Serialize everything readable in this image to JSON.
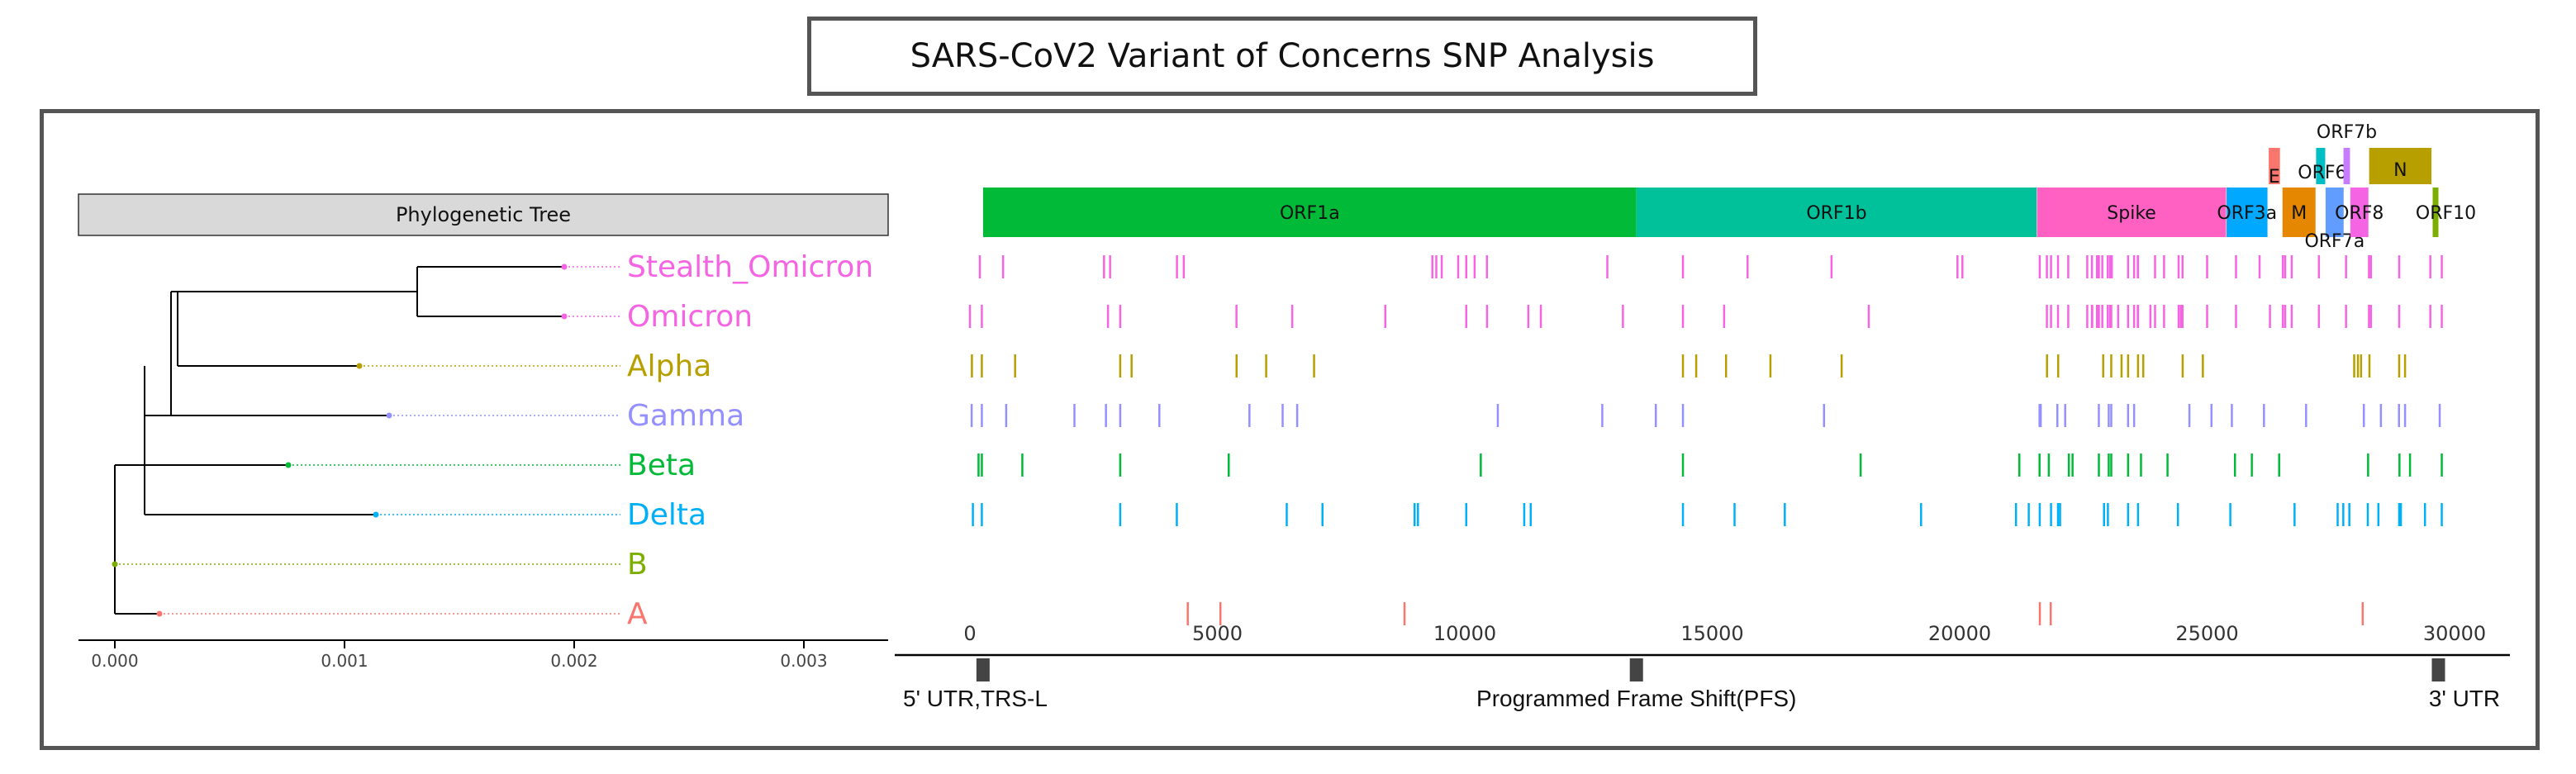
{
  "title": "SARS-CoV2 Variant of Concerns SNP Analysis",
  "tree": {
    "header": "Phylogenetic Tree",
    "axis_ticks": [
      "0.000",
      "0.001",
      "0.002",
      "0.003"
    ],
    "axis_values": [
      0.0,
      0.001,
      0.002,
      0.003
    ],
    "tips": [
      {
        "label": "Stealth_Omicron",
        "color": "#F564E3",
        "dist": 0.00194
      },
      {
        "label": "Omicron",
        "color": "#F564E3",
        "dist": 0.00194
      },
      {
        "label": "Alpha",
        "color": "#B79F00",
        "dist": 0.00106
      },
      {
        "label": "Gamma",
        "color": "#9590FF",
        "dist": 0.0012
      },
      {
        "label": "Beta",
        "color": "#00BA38",
        "dist": 0.00075
      },
      {
        "label": "Delta",
        "color": "#00B0F6",
        "dist": 0.00113
      },
      {
        "label": "B",
        "color": "#7CAE00",
        "dist": 0.0
      },
      {
        "label": "A",
        "color": "#F8766D",
        "dist": 0.0002
      }
    ]
  },
  "genome": {
    "axis_ticks": [
      "0",
      "5000",
      "10000",
      "15000",
      "20000",
      "25000",
      "30000"
    ],
    "axis_values": [
      0,
      5000,
      10000,
      15000,
      20000,
      25000,
      30000
    ],
    "genes": [
      {
        "name": "ORF1a",
        "start": 266,
        "end": 13468,
        "color": "#00BA38",
        "row": 0
      },
      {
        "name": "ORF1b",
        "start": 13468,
        "end": 21555,
        "color": "#00C19A",
        "row": 0
      },
      {
        "name": "Spike",
        "start": 21563,
        "end": 25384,
        "color": "#FF61C3",
        "row": 0
      },
      {
        "name": "ORF3a",
        "start": 25393,
        "end": 26220,
        "color": "#00A9FF",
        "row": 0
      },
      {
        "name": "E",
        "start": 26245,
        "end": 26472,
        "color": "#F8766D",
        "row": 1
      },
      {
        "name": "M",
        "start": 26523,
        "end": 27191,
        "color": "#E58700",
        "row": 0
      },
      {
        "name": "ORF6",
        "start": 27202,
        "end": 27387,
        "color": "#00BFC4",
        "row": 1
      },
      {
        "name": "ORF7a",
        "start": 27394,
        "end": 27759,
        "color": "#619CFF",
        "row": 0
      },
      {
        "name": "ORF7b",
        "start": 27756,
        "end": 27887,
        "color": "#C77CFF",
        "row": 1
      },
      {
        "name": "ORF8",
        "start": 27894,
        "end": 28259,
        "color": "#F564E3",
        "row": 0
      },
      {
        "name": "N",
        "start": 28274,
        "end": 29533,
        "color": "#B79F00",
        "row": 1
      },
      {
        "name": "ORF10",
        "start": 29558,
        "end": 29674,
        "color": "#7CAE00",
        "row": 0
      }
    ],
    "landmarks": [
      {
        "label": "5' UTR,TRS-L",
        "position": 265
      },
      {
        "label": "Programmed Frame Shift(PFS)",
        "position": 13468
      },
      {
        "label": "3' UTR",
        "position": 29674
      }
    ]
  },
  "snps": {
    "Stealth_Omicron": [
      200,
      670,
      2710,
      2832,
      4184,
      4321,
      9344,
      9424,
      9534,
      9866,
      10029,
      10198,
      10447,
      12880,
      14408,
      15714,
      17410,
      19955,
      20055,
      21618,
      21762,
      21846,
      21987,
      22194,
      22578,
      22673,
      22775,
      22786,
      22813,
      22882,
      22992,
      23040,
      23075,
      23403,
      23525,
      23599,
      23604,
      23948,
      24130,
      24424,
      24503,
      25000,
      25584,
      26060,
      26530,
      26577,
      26709,
      27259,
      27807,
      28271,
      28311,
      28881,
      29510,
      29742
    ],
    "Omicron": [
      0,
      241,
      2790,
      3037,
      5386,
      6513,
      8393,
      10029,
      10449,
      11283,
      11537,
      13195,
      14408,
      15240,
      18163,
      21762,
      21846,
      21987,
      22194,
      22578,
      22673,
      22679,
      22775,
      22786,
      22813,
      22882,
      22992,
      23040,
      23063,
      23202,
      23403,
      23525,
      23599,
      23604,
      23854,
      23948,
      24130,
      24424,
      24469,
      24503,
      25000,
      25584,
      26270,
      26530,
      26577,
      26709,
      27259,
      27807,
      28271,
      28311,
      28881,
      29510,
      29742
    ],
    "Alpha": [
      40,
      241,
      913,
      3037,
      3267,
      5388,
      5986,
      6954,
      14408,
      14676,
      15279,
      16176,
      17615,
      21765,
      21991,
      22900,
      23063,
      23271,
      23403,
      23604,
      23709,
      24506,
      24914,
      27972,
      28048,
      28111,
      28280,
      28881,
      29000
    ],
    "Gamma": [
      35,
      241,
      733,
      2112,
      2749,
      3037,
      3828,
      5648,
      6319,
      6613,
      10667,
      12778,
      13860,
      14408,
      17259,
      21614,
      21621,
      21638,
      21974,
      22132,
      22812,
      23012,
      23063,
      23403,
      23525,
      24642,
      25088,
      25500,
      26149,
      27000,
      28167,
      28512,
      28877,
      29000,
      29700
    ],
    "Beta": [
      174,
      241,
      1059,
      3037,
      5230,
      10323,
      14408,
      17999,
      21205,
      21614,
      21801,
      22206,
      22281,
      22813,
      23012,
      23063,
      23403,
      23664,
      24200,
      25563,
      25904,
      26456,
      28253,
      28887,
      29100,
      29742
    ],
    "Delta": [
      60,
      241,
      3037,
      4181,
      6402,
      7124,
      8986,
      9053,
      10029,
      11201,
      11332,
      14408,
      15451,
      16466,
      19220,
      21138,
      21396,
      21618,
      21846,
      21987,
      22029,
      22917,
      22995,
      23403,
      23604,
      24410,
      25469,
      26767,
      27638,
      27752,
      27874,
      28247,
      28461,
      28881,
      28916,
      29402,
      29742
    ],
    "B": [],
    "A": [
      4402,
      5062,
      8782,
      21620,
      21840,
      28144
    ]
  }
}
